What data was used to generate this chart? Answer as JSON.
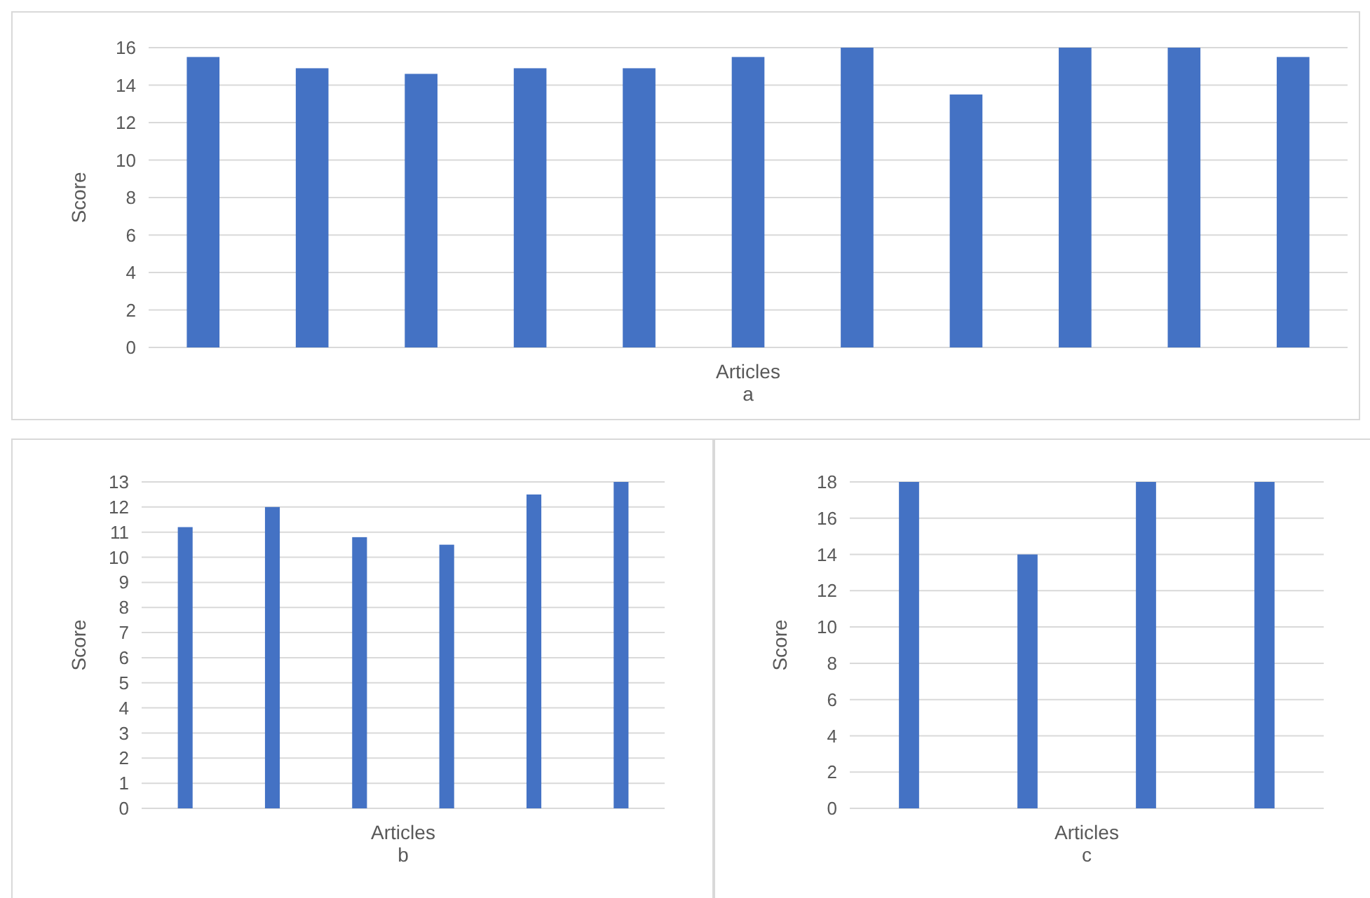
{
  "chart_data": [
    {
      "type": "bar",
      "ylabel": "Score",
      "xlabel": "Articles",
      "annotations": [
        "a"
      ],
      "categories": [
        null,
        null,
        null,
        null,
        null,
        null,
        null,
        null,
        null,
        null,
        null
      ],
      "values": [
        15.5,
        14.9,
        14.6,
        14.9,
        14.9,
        15.5,
        16,
        13.5,
        16,
        16,
        15.5
      ],
      "color": "#4472c4",
      "ylim": [
        0,
        16
      ],
      "yticks": [
        0,
        2,
        4,
        6,
        8,
        10,
        12,
        14,
        16
      ],
      "grid": "y"
    },
    {
      "type": "bar",
      "ylabel": "Score",
      "xlabel": "Articles",
      "annotations": [
        "b"
      ],
      "categories": [
        null,
        null,
        null,
        null,
        null,
        null
      ],
      "values": [
        11.2,
        12,
        10.8,
        10.5,
        12.5,
        13
      ],
      "color": "#4472c4",
      "ylim": [
        0,
        13
      ],
      "yticks": [
        0,
        1,
        2,
        3,
        4,
        5,
        6,
        7,
        8,
        9,
        10,
        11,
        12,
        13
      ],
      "grid": "y"
    },
    {
      "type": "bar",
      "ylabel": "Score",
      "xlabel": "Articles",
      "annotations": [
        "c"
      ],
      "categories": [
        null,
        null,
        null,
        null
      ],
      "values": [
        18,
        14,
        18,
        18
      ],
      "color": "#4472c4",
      "ylim": [
        0,
        18
      ],
      "yticks": [
        0,
        2,
        4,
        6,
        8,
        10,
        12,
        14,
        16,
        18
      ],
      "grid": "y"
    }
  ]
}
